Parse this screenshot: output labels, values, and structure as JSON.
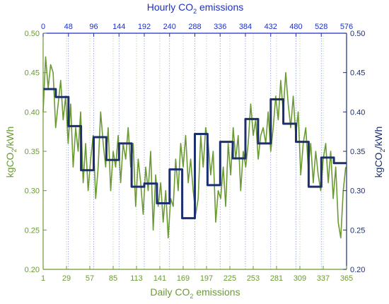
{
  "chart_data": {
    "type": "line",
    "title": "Hourly CO2 emissions",
    "top_axis": {
      "title_main": "Hourly CO",
      "title_sub": "2",
      "title_tail": " emissions",
      "range": [
        0,
        576
      ],
      "ticks": [
        "0",
        "48",
        "96",
        "144",
        "192",
        "240",
        "288",
        "336",
        "384",
        "432",
        "480",
        "528",
        "576"
      ],
      "color": "#1c2fc8"
    },
    "bottom_axis": {
      "title_main": "Daily CO",
      "title_sub": "2",
      "title_tail": " emissions",
      "range": [
        1,
        365
      ],
      "ticks": [
        "1",
        "29",
        "57",
        "85",
        "113",
        "141",
        "169",
        "197",
        "225",
        "253",
        "281",
        "309",
        "337",
        "365"
      ],
      "color": "#6b9a33"
    },
    "left_axis": {
      "title_main": "kgCO",
      "title_sub": "2",
      "title_tail": "/kWh",
      "range": [
        0.2,
        0.5
      ],
      "ticks": [
        "0.20",
        "0.25",
        "0.30",
        "0.35",
        "0.40",
        "0.45",
        "0.50"
      ],
      "color": "#6b9a33"
    },
    "right_axis": {
      "title_main": "kgCO",
      "title_sub": "2",
      "title_tail": "/kWh",
      "range": [
        0.2,
        0.5
      ],
      "ticks": [
        "0.20",
        "0.25",
        "0.30",
        "0.35",
        "0.40",
        "0.45",
        "0.50"
      ],
      "color": "#1c2f6e"
    },
    "grid": "vertical dotted",
    "series": [
      {
        "axis": "bottom",
        "color": "#6b9a33",
        "x": [
          1,
          4,
          7,
          10,
          13,
          16,
          19,
          22,
          25,
          28,
          31,
          34,
          37,
          40,
          43,
          46,
          49,
          52,
          55,
          58,
          61,
          64,
          67,
          70,
          73,
          76,
          79,
          82,
          85,
          88,
          91,
          94,
          97,
          100,
          103,
          106,
          109,
          112,
          115,
          118,
          121,
          124,
          127,
          130,
          133,
          136,
          139,
          142,
          145,
          148,
          151,
          154,
          157,
          160,
          163,
          166,
          169,
          172,
          175,
          178,
          181,
          184,
          187,
          190,
          193,
          196,
          199,
          202,
          205,
          208,
          211,
          214,
          217,
          220,
          223,
          226,
          229,
          232,
          235,
          238,
          241,
          244,
          247,
          250,
          253,
          256,
          259,
          262,
          265,
          268,
          271,
          274,
          277,
          280,
          283,
          286,
          289,
          292,
          295,
          298,
          301,
          304,
          307,
          310,
          313,
          316,
          319,
          322,
          325,
          328,
          331,
          334,
          337,
          340,
          343,
          346,
          349,
          352,
          355,
          358,
          361,
          364
        ],
        "y": [
          0.4,
          0.47,
          0.43,
          0.46,
          0.45,
          0.38,
          0.41,
          0.44,
          0.39,
          0.42,
          0.36,
          0.41,
          0.33,
          0.38,
          0.35,
          0.4,
          0.31,
          0.36,
          0.3,
          0.34,
          0.37,
          0.29,
          0.33,
          0.4,
          0.36,
          0.33,
          0.38,
          0.3,
          0.35,
          0.33,
          0.37,
          0.31,
          0.36,
          0.34,
          0.38,
          0.33,
          0.36,
          0.28,
          0.34,
          0.31,
          0.27,
          0.33,
          0.3,
          0.35,
          0.25,
          0.32,
          0.28,
          0.31,
          0.26,
          0.3,
          0.24,
          0.29,
          0.28,
          0.34,
          0.3,
          0.36,
          0.33,
          0.37,
          0.31,
          0.34,
          0.3,
          0.27,
          0.29,
          0.37,
          0.33,
          0.38,
          0.36,
          0.32,
          0.35,
          0.26,
          0.3,
          0.29,
          0.33,
          0.28,
          0.36,
          0.32,
          0.38,
          0.34,
          0.37,
          0.3,
          0.35,
          0.33,
          0.36,
          0.41,
          0.37,
          0.39,
          0.34,
          0.37,
          0.38,
          0.36,
          0.4,
          0.35,
          0.38,
          0.42,
          0.39,
          0.44,
          0.4,
          0.45,
          0.41,
          0.38,
          0.42,
          0.37,
          0.4,
          0.32,
          0.36,
          0.38,
          0.33,
          0.36,
          0.31,
          0.35,
          0.32,
          0.3,
          0.34,
          0.36,
          0.31,
          0.35,
          0.29,
          0.33,
          0.26,
          0.24,
          0.3,
          0.33
        ]
      },
      {
        "axis": "top",
        "color": "#1c2f6e",
        "x": [
          0,
          24,
          24,
          48,
          48,
          72,
          72,
          96,
          96,
          120,
          120,
          144,
          144,
          168,
          168,
          192,
          192,
          216,
          216,
          240,
          240,
          264,
          264,
          288,
          288,
          312,
          312,
          336,
          336,
          360,
          360,
          384,
          384,
          408,
          408,
          432,
          432,
          456,
          456,
          480,
          480,
          504,
          504,
          528,
          528,
          552,
          552,
          576
        ],
        "y": [
          0.429,
          0.429,
          0.419,
          0.419,
          0.382,
          0.382,
          0.326,
          0.326,
          0.368,
          0.368,
          0.339,
          0.339,
          0.36,
          0.36,
          0.305,
          0.305,
          0.309,
          0.309,
          0.284,
          0.284,
          0.327,
          0.327,
          0.265,
          0.265,
          0.372,
          0.372,
          0.307,
          0.307,
          0.362,
          0.362,
          0.341,
          0.341,
          0.391,
          0.391,
          0.36,
          0.36,
          0.416,
          0.416,
          0.385,
          0.385,
          0.362,
          0.362,
          0.305,
          0.305,
          0.342,
          0.342,
          0.335,
          0.335
        ]
      }
    ]
  }
}
